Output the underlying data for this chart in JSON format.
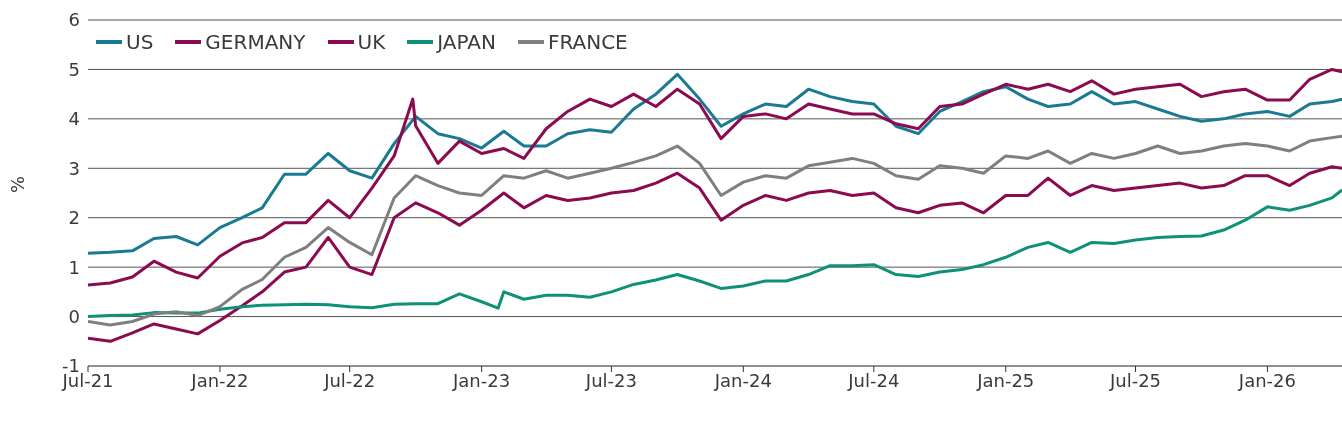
{
  "chart_data": {
    "type": "line",
    "ylabel": "%",
    "x": [
      "2021-07-01",
      "2021-08-01",
      "2021-09-01",
      "2021-10-01",
      "2021-11-01",
      "2021-12-01",
      "2022-01-01",
      "2022-02-01",
      "2022-03-01",
      "2022-04-01",
      "2022-05-01",
      "2022-06-01",
      "2022-07-01",
      "2022-08-01",
      "2022-09-01",
      "2022-10-01",
      "2022-11-01",
      "2022-12-01",
      "2023-01-01",
      "2023-02-01",
      "2023-03-01",
      "2023-04-01",
      "2023-05-01",
      "2023-06-01",
      "2023-07-01",
      "2023-08-01",
      "2023-09-01",
      "2023-10-01",
      "2023-11-01",
      "2023-12-01",
      "2024-01-01",
      "2024-02-01",
      "2024-03-01",
      "2024-04-01",
      "2024-05-01",
      "2024-06-01",
      "2024-07-01",
      "2024-08-01",
      "2024-09-01",
      "2024-10-01",
      "2024-11-01",
      "2024-12-01",
      "2025-01-01",
      "2025-02-01",
      "2025-03-01",
      "2025-04-01",
      "2025-05-01",
      "2025-06-01",
      "2025-07-01",
      "2025-08-01",
      "2025-09-01",
      "2025-10-01",
      "2025-11-01",
      "2025-12-01",
      "2026-01-01",
      "2026-02-01",
      "2026-03-01",
      "2026-04-01",
      "2026-04-15"
    ],
    "series": [
      {
        "name": "US",
        "color": "#1a7a94",
        "values": [
          1.28,
          1.3,
          1.33,
          1.58,
          1.62,
          1.45,
          1.8,
          2.0,
          2.2,
          2.88,
          2.88,
          3.3,
          2.95,
          2.8,
          3.5,
          4.05,
          3.7,
          3.6,
          3.41,
          3.75,
          3.45,
          3.45,
          3.7,
          3.78,
          3.73,
          4.2,
          4.5,
          4.9,
          4.4,
          3.85,
          4.1,
          4.3,
          4.25,
          4.6,
          4.45,
          4.35,
          4.3,
          3.85,
          3.7,
          4.15,
          4.35,
          4.55,
          4.65,
          4.4,
          4.25,
          4.3,
          4.55,
          4.3,
          4.35,
          4.2,
          4.05,
          3.95,
          4.0,
          4.1,
          4.15,
          4.05,
          4.3,
          4.35,
          4.4
        ]
      },
      {
        "name": "GERMANY",
        "color": "#8b0a50",
        "values": [
          -0.44,
          -0.5,
          -0.33,
          -0.15,
          -0.25,
          -0.35,
          -0.08,
          0.22,
          0.5,
          0.9,
          1.0,
          1.6,
          1.0,
          0.85,
          2.0,
          2.3,
          2.1,
          1.85,
          2.15,
          2.5,
          2.2,
          2.45,
          2.35,
          2.4,
          2.5,
          2.55,
          2.7,
          2.9,
          2.6,
          1.95,
          2.25,
          2.45,
          2.35,
          2.5,
          2.55,
          2.45,
          2.5,
          2.2,
          2.1,
          2.25,
          2.3,
          2.1,
          2.45,
          2.45,
          2.8,
          2.45,
          2.65,
          2.55,
          2.6,
          2.65,
          2.7,
          2.6,
          2.65,
          2.85,
          2.85,
          2.65,
          2.9,
          3.03,
          3.0
        ]
      },
      {
        "name": "UK",
        "color": "#8b0a50",
        "x": [
          "2021-07-01",
          "2021-08-01",
          "2021-09-01",
          "2021-10-01",
          "2021-11-01",
          "2021-12-01",
          "2022-01-01",
          "2022-02-01",
          "2022-03-01",
          "2022-04-01",
          "2022-05-01",
          "2022-06-01",
          "2022-07-01",
          "2022-08-01",
          "2022-09-01",
          "2022-09-27",
          "2022-10-01",
          "2022-11-01",
          "2022-12-01",
          "2023-01-01",
          "2023-02-01",
          "2023-03-01",
          "2023-04-01",
          "2023-05-01",
          "2023-06-01",
          "2023-07-01",
          "2023-08-01",
          "2023-09-01",
          "2023-10-01",
          "2023-11-01",
          "2023-12-01",
          "2024-01-01",
          "2024-02-01",
          "2024-03-01",
          "2024-04-01",
          "2024-05-01",
          "2024-06-01",
          "2024-07-01",
          "2024-08-01",
          "2024-09-01",
          "2024-10-01",
          "2024-11-01",
          "2024-12-01",
          "2025-01-01",
          "2025-02-01",
          "2025-03-01",
          "2025-04-01",
          "2025-05-01",
          "2025-06-01",
          "2025-07-01",
          "2025-08-01",
          "2025-09-01",
          "2025-10-01",
          "2025-11-01",
          "2025-12-01",
          "2026-01-01",
          "2026-02-01",
          "2026-03-01",
          "2026-04-01",
          "2026-04-15"
        ],
        "values": [
          0.64,
          0.68,
          0.8,
          1.12,
          0.9,
          0.78,
          1.22,
          1.49,
          1.6,
          1.9,
          1.9,
          2.35,
          2.0,
          2.6,
          3.25,
          4.4,
          3.86,
          3.1,
          3.55,
          3.3,
          3.4,
          3.2,
          3.8,
          4.15,
          4.4,
          4.25,
          4.5,
          4.25,
          4.6,
          4.3,
          3.6,
          4.05,
          4.1,
          4.0,
          4.3,
          4.2,
          4.1,
          4.1,
          3.9,
          3.8,
          4.25,
          4.3,
          4.5,
          4.7,
          4.6,
          4.7,
          4.55,
          4.77,
          4.5,
          4.6,
          4.65,
          4.7,
          4.45,
          4.55,
          4.6,
          4.38,
          4.38,
          4.8,
          5.0,
          4.95
        ]
      },
      {
        "name": "JAPAN",
        "color": "#0e9178",
        "x": [
          "2021-07-01",
          "2021-08-01",
          "2021-09-01",
          "2021-10-01",
          "2021-11-01",
          "2021-12-01",
          "2022-01-01",
          "2022-02-01",
          "2022-03-01",
          "2022-04-01",
          "2022-05-01",
          "2022-06-01",
          "2022-07-01",
          "2022-08-01",
          "2022-09-01",
          "2022-10-01",
          "2022-11-01",
          "2022-12-01",
          "2023-01-01",
          "2023-01-24",
          "2023-02-01",
          "2023-03-01",
          "2023-04-01",
          "2023-05-01",
          "2023-06-01",
          "2023-07-01",
          "2023-08-01",
          "2023-09-01",
          "2023-10-01",
          "2023-11-01",
          "2023-12-01",
          "2024-01-01",
          "2024-02-01",
          "2024-03-01",
          "2024-04-01",
          "2024-05-01",
          "2024-06-01",
          "2024-07-01",
          "2024-08-01",
          "2024-09-01",
          "2024-10-01",
          "2024-11-01",
          "2024-12-01",
          "2025-01-01",
          "2025-02-01",
          "2025-03-01",
          "2025-04-01",
          "2025-05-01",
          "2025-06-01",
          "2025-07-01",
          "2025-08-01",
          "2025-09-01",
          "2025-10-01",
          "2025-11-01",
          "2025-12-01",
          "2026-01-01",
          "2026-02-01",
          "2026-03-01",
          "2026-04-01",
          "2026-04-15"
        ],
        "values": [
          0.0,
          0.02,
          0.03,
          0.08,
          0.07,
          0.07,
          0.15,
          0.2,
          0.23,
          0.24,
          0.25,
          0.24,
          0.2,
          0.18,
          0.25,
          0.26,
          0.26,
          0.46,
          0.3,
          0.17,
          0.5,
          0.35,
          0.43,
          0.43,
          0.39,
          0.5,
          0.65,
          0.74,
          0.85,
          0.72,
          0.57,
          0.62,
          0.72,
          0.72,
          0.85,
          1.03,
          1.03,
          1.05,
          0.85,
          0.81,
          0.9,
          0.95,
          1.05,
          1.2,
          1.4,
          1.5,
          1.3,
          1.5,
          1.48,
          1.55,
          1.6,
          1.62,
          1.63,
          1.75,
          1.95,
          2.22,
          2.15,
          2.25,
          2.4,
          2.56
        ]
      },
      {
        "name": "FRANCE",
        "color": "#7f7f7f",
        "values": [
          -0.1,
          -0.17,
          -0.1,
          0.05,
          0.1,
          0.02,
          0.2,
          0.55,
          0.75,
          1.2,
          1.4,
          1.8,
          1.5,
          1.25,
          2.4,
          2.85,
          2.65,
          2.5,
          2.45,
          2.85,
          2.8,
          2.95,
          2.8,
          2.9,
          3.0,
          3.12,
          3.25,
          3.45,
          3.1,
          2.45,
          2.72,
          2.85,
          2.8,
          3.05,
          3.12,
          3.2,
          3.1,
          2.85,
          2.78,
          3.05,
          3.0,
          2.9,
          3.25,
          3.2,
          3.35,
          3.1,
          3.3,
          3.2,
          3.3,
          3.45,
          3.3,
          3.35,
          3.45,
          3.5,
          3.45,
          3.35,
          3.55,
          3.62,
          3.65
        ]
      }
    ],
    "xlim": [
      "2021-07-01",
      "2026-04-15"
    ],
    "xticks": [
      {
        "value": "2021-07-01",
        "label": "Jul-21"
      },
      {
        "value": "2022-01-01",
        "label": "Jan-22"
      },
      {
        "value": "2022-07-01",
        "label": "Jul-22"
      },
      {
        "value": "2023-01-01",
        "label": "Jan-23"
      },
      {
        "value": "2023-07-01",
        "label": "Jul-23"
      },
      {
        "value": "2024-01-01",
        "label": "Jan-24"
      },
      {
        "value": "2024-07-01",
        "label": "Jul-24"
      },
      {
        "value": "2025-01-01",
        "label": "Jan-25"
      },
      {
        "value": "2025-07-01",
        "label": "Jul-25"
      },
      {
        "value": "2026-01-01",
        "label": "Jan-26"
      }
    ],
    "ylim": [
      -1,
      6
    ],
    "yticks": [
      -1,
      0,
      1,
      2,
      3,
      4,
      5,
      6
    ],
    "grid": "y",
    "legend": "top left",
    "line_style": "solid"
  }
}
